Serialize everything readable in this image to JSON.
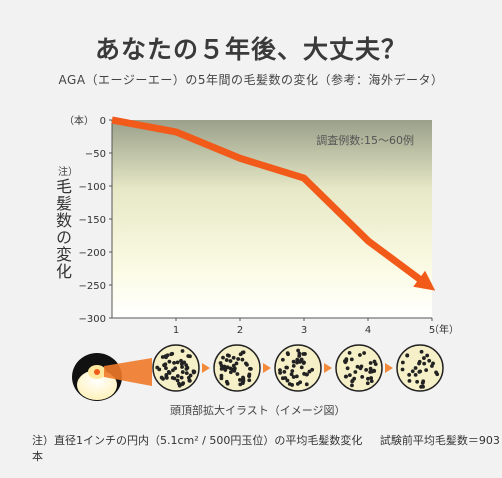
{
  "title": "あなたの５年後、大丈夫？",
  "subtitle": "AGA（エージーエー）の5年間の毛髪数の変化（参考：海外データ）",
  "y_axis_note": "注）",
  "y_axis_label": "毛髪数の変化",
  "caption": "頭頂部拡大イラスト（イメージ図）",
  "footnote": {
    "note": "注）直径1インチの円内（5.1cm² / 500円玉位）の平均毛髪数変化",
    "baseline": "試験前平均毛髪数＝903本"
  },
  "colors": {
    "line": "#f25a1a",
    "arrow": "#f28a3a",
    "circle_fill": "#f6f0c8",
    "dot": "#222222"
  },
  "icons": [
    "head-icon",
    "arrow-right-icon"
  ],
  "chart_data": {
    "type": "line",
    "title": "",
    "annotation": "調査例数:15～60例",
    "xlabel": "",
    "ylabel": "毛髪数の変化",
    "y_unit": "（本）",
    "x_unit": "（年）",
    "x": [
      0,
      1,
      2,
      3,
      4,
      5
    ],
    "values": [
      0,
      -18,
      -58,
      -88,
      -183,
      -255
    ],
    "xlim": [
      0,
      5
    ],
    "ylim": [
      -300,
      0
    ],
    "x_ticks": [
      "1",
      "2",
      "3",
      "4",
      "5"
    ],
    "y_ticks": [
      "0",
      "−50",
      "−100",
      "−150",
      "−200",
      "−250",
      "−300"
    ],
    "grid": false,
    "legend": "none"
  },
  "scalp_illustrations": [
    {
      "year": "1",
      "density": 52
    },
    {
      "year": "2",
      "density": 46
    },
    {
      "year": "3",
      "density": 40
    },
    {
      "year": "4",
      "density": 34
    },
    {
      "year": "5",
      "density": 28
    }
  ]
}
